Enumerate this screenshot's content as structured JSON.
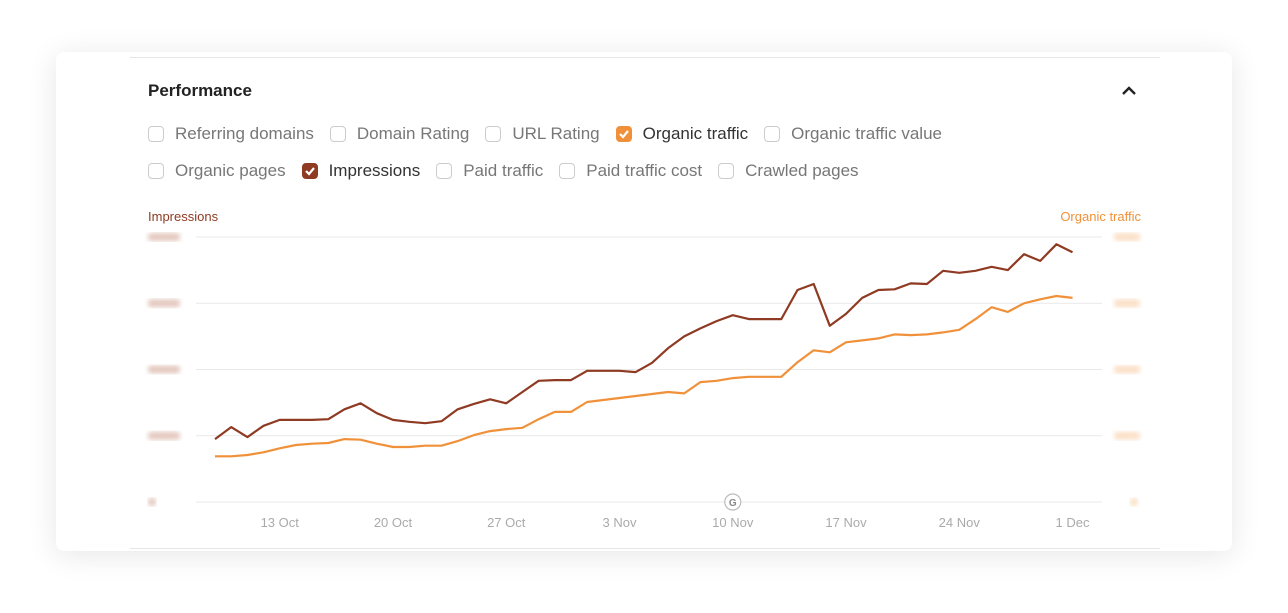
{
  "section": {
    "title": "Performance",
    "collapse_icon": "chevron-up-icon"
  },
  "metrics": [
    {
      "label": "Referring domains",
      "checked": false
    },
    {
      "label": "Domain Rating",
      "checked": false
    },
    {
      "label": "URL Rating",
      "checked": false
    },
    {
      "label": "Organic traffic",
      "checked": true,
      "color": "#f0913a"
    },
    {
      "label": "Organic traffic value",
      "checked": false
    },
    {
      "label": "Organic pages",
      "checked": false
    },
    {
      "label": "Impressions",
      "checked": true,
      "color": "#8f3a22"
    },
    {
      "label": "Paid traffic",
      "checked": false
    },
    {
      "label": "Paid traffic cost",
      "checked": false
    },
    {
      "label": "Crawled pages",
      "checked": false
    }
  ],
  "chart_data": {
    "type": "line",
    "left_axis_label": "Impressions",
    "right_axis_label": "Organic traffic",
    "x_ticks": [
      "13 Oct",
      "20 Oct",
      "27 Oct",
      "3 Nov",
      "10 Nov",
      "17 Nov",
      "24 Nov",
      "1 Dec"
    ],
    "x_start": "9 Oct",
    "x_end": "1 Dec",
    "x_step": "1 day",
    "ylim": [
      0,
      400
    ],
    "y_tick_labels_obscured": true,
    "annotation": {
      "icon": "google-update-icon",
      "label": "G",
      "date": "10 Nov"
    },
    "series": [
      {
        "name": "Impressions",
        "color": "#8f3a22",
        "values": [
          95,
          113,
          98,
          115,
          124,
          124,
          124,
          125,
          140,
          149,
          134,
          124,
          121,
          119,
          122,
          140,
          148,
          155,
          149,
          166,
          183,
          184,
          184,
          198,
          198,
          198,
          196,
          210,
          232,
          250,
          262,
          273,
          282,
          276,
          276,
          276,
          320,
          329,
          266,
          284,
          308,
          320,
          321,
          330,
          329,
          349,
          346,
          349,
          355,
          350,
          374,
          364,
          389,
          377
        ]
      },
      {
        "name": "Organic traffic",
        "color": "#f0913a",
        "values": [
          69,
          69,
          71,
          75,
          81,
          86,
          88,
          89,
          95,
          94,
          88,
          83,
          83,
          85,
          85,
          92,
          101,
          107,
          110,
          112,
          125,
          136,
          136,
          151,
          154,
          157,
          160,
          163,
          166,
          164,
          181,
          183,
          187,
          189,
          189,
          189,
          211,
          229,
          226,
          241,
          244,
          247,
          253,
          252,
          253,
          256,
          260,
          276,
          294,
          287,
          300,
          306,
          311,
          308
        ]
      }
    ]
  }
}
